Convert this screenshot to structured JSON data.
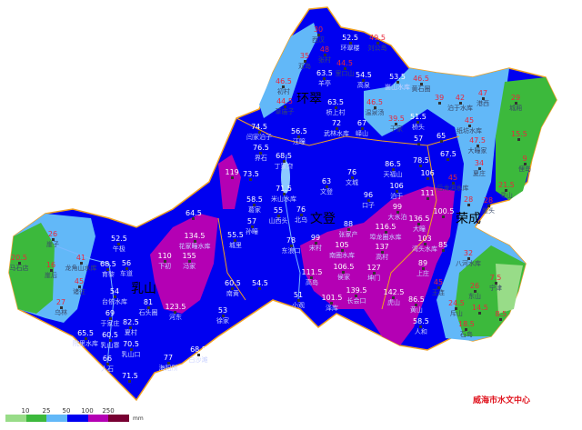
{
  "map": {
    "regions": [
      "环翠",
      "文登",
      "乳山",
      "荣成"
    ],
    "stations": [
      [
        "环翠楼",
        "52.5"
      ],
      [
        "刘公岛",
        "49.5"
      ],
      [
        "西汉",
        "30"
      ],
      [
        "张村",
        "48"
      ],
      [
        "双岛",
        "35"
      ],
      [
        "初村",
        "46.5"
      ],
      [
        "草庙子",
        "44.5"
      ],
      [
        "里口山",
        "44.5"
      ],
      [
        "羊亭",
        "63.5"
      ],
      [
        "高泉",
        "54.5"
      ],
      [
        "崮山水库",
        "53.5"
      ],
      [
        "温泉汤",
        "46.5"
      ],
      [
        "黄石圈",
        "46.5"
      ],
      [
        "桥上村",
        "63.5"
      ],
      [
        "武林水库",
        "72"
      ],
      [
        "峄山",
        "67"
      ],
      [
        "于家",
        "39.5"
      ],
      [
        "桥头",
        "51.5"
      ],
      [
        "",
        "57"
      ],
      [
        "",
        "65"
      ],
      [
        "",
        "39"
      ],
      [
        "泊于水库",
        "42"
      ],
      [
        "港西",
        "47"
      ],
      [
        "城厢",
        "29"
      ],
      [
        "纸坊水库",
        "45"
      ],
      [
        "大疃家",
        "47.5"
      ],
      [
        "",
        "15.5"
      ],
      [
        "俚岛",
        "9"
      ],
      [
        "夏庄",
        "34"
      ],
      [
        "寻山",
        "21.5"
      ],
      [
        "崖头",
        "28"
      ],
      [
        "",
        "28"
      ],
      [
        "",
        "67.5"
      ],
      [
        "",
        "78.5"
      ],
      [
        "天福山",
        "86.5"
      ],
      [
        "泊于",
        "106"
      ],
      [
        "",
        "106"
      ],
      [
        "后龙河水库",
        "45"
      ],
      [
        "大水泊",
        "99"
      ],
      [
        "",
        "111"
      ],
      [
        "",
        "100.5"
      ],
      [
        "大疃",
        "136.5"
      ],
      [
        "湾头水库",
        "103"
      ],
      [
        "",
        "85"
      ],
      [
        "上庄",
        "89"
      ],
      [
        "王连",
        "45"
      ],
      [
        "八河水库",
        "32"
      ],
      [
        "宁津",
        "7.5"
      ],
      [
        "东山",
        "26"
      ],
      [
        "斥山",
        "24.5"
      ],
      [
        "",
        "14.5"
      ],
      [
        "",
        "8.5"
      ],
      [
        "石岛",
        "18.5"
      ],
      [
        "虎山",
        "142.5"
      ],
      [
        "黄山",
        "86.5"
      ],
      [
        "人和",
        "58.5"
      ],
      [
        "闫家泊子",
        "74.5"
      ],
      [
        "汪疃",
        "56.5"
      ],
      [
        "界石",
        "76.5"
      ],
      [
        "丁家夼",
        "68.5"
      ],
      [
        "",
        "119"
      ],
      [
        "",
        "73.5"
      ],
      [
        "米山水库",
        "71.5"
      ],
      [
        "葛家",
        "58.5"
      ],
      [
        "孙疃",
        "57"
      ],
      [
        "山西头",
        "55"
      ],
      [
        "城里",
        "55.5"
      ],
      [
        "东浪口",
        "78"
      ],
      [
        "北乌",
        "76"
      ],
      [
        "文登",
        "63"
      ],
      [
        "文城",
        "76"
      ],
      [
        "口子",
        "96"
      ],
      [
        "张家产",
        "88"
      ],
      [
        "南圈水库",
        "105"
      ],
      [
        "宋村",
        "99"
      ],
      [
        "埠龙圈水库",
        "116.5"
      ],
      [
        "高村",
        "137"
      ],
      [
        "侯家",
        "106.5"
      ],
      [
        "坤门",
        "127"
      ],
      [
        "高岛",
        "111.5"
      ],
      [
        "泽库",
        "101.5"
      ],
      [
        "长会口",
        "139.5"
      ],
      [
        "小观",
        "51"
      ],
      [
        "南黄",
        "60.5"
      ],
      [
        "",
        "54.5"
      ],
      [
        "徐家",
        "53"
      ],
      [
        "崖子",
        "26"
      ],
      [
        "马石店",
        "20.5"
      ],
      [
        "崖后",
        "16"
      ],
      [
        "龙角山水库",
        "41"
      ],
      [
        "诸往",
        "45"
      ],
      [
        "乌林",
        "27"
      ],
      [
        "午极",
        "52.5"
      ],
      [
        "育黎",
        "68.5"
      ],
      [
        "车道",
        "56"
      ],
      [
        "台依水库",
        "54"
      ],
      [
        "石头圈",
        "81"
      ],
      [
        "于家庄",
        "69"
      ],
      [
        "夏村",
        "82.5"
      ],
      [
        "乳山寨",
        "60.5"
      ],
      [
        "乳山口",
        "70.5"
      ],
      [
        "院里水库",
        "65.5"
      ],
      [
        "人石",
        "66"
      ],
      [
        "海阳所",
        "77"
      ],
      [
        "白沙滩",
        "68.5"
      ],
      [
        "",
        "71.5"
      ],
      [
        "下初",
        "110"
      ],
      [
        "冯家",
        "155"
      ],
      [
        "花家疃水库",
        "134.5"
      ],
      [
        "河东",
        "123.5"
      ],
      [
        "",
        "64.5"
      ]
    ]
  },
  "legend": {
    "ticks": [
      "10",
      "25",
      "50",
      "100",
      "250"
    ],
    "colors": [
      "#98dc88",
      "#3cb93c",
      "#62b8f8",
      "#0000f0",
      "#b400b4",
      "#780032"
    ],
    "unit": "mm"
  },
  "credit": "威海市水文中心"
}
